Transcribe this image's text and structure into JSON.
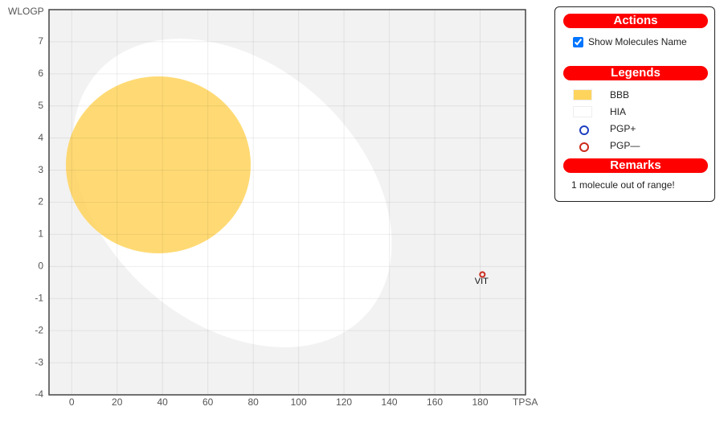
{
  "chart_data": {
    "type": "scatter",
    "xlabel": "TPSA",
    "ylabel": "WLOGP",
    "xlim": [
      -10,
      200
    ],
    "ylim": [
      -4,
      8
    ],
    "xticks": [
      0,
      20,
      40,
      60,
      80,
      100,
      120,
      140,
      160,
      180
    ],
    "yticks": [
      -4,
      -3,
      -2,
      -1,
      0,
      1,
      2,
      3,
      4,
      5,
      6,
      7
    ],
    "grid": true,
    "series": [
      {
        "name": "PGP—",
        "color": "#cc2a1c",
        "x": [
          181
        ],
        "values": [
          -0.25
        ],
        "point_labels": [
          "VIT"
        ]
      }
    ]
  },
  "panel": {
    "actions_title": "Actions",
    "checkbox_label": "Show Molecules Name",
    "legends_title": "Legends",
    "legend": [
      {
        "name": "BBB",
        "color": "#ffd45c"
      },
      {
        "name": "HIA",
        "color": "#ffffff"
      },
      {
        "name": "PGP+",
        "color": "#1f3fbf"
      },
      {
        "name": "PGP—",
        "color": "#cc2a1c"
      }
    ],
    "remarks_title": "Remarks",
    "remark": "1 molecule out of range!"
  }
}
